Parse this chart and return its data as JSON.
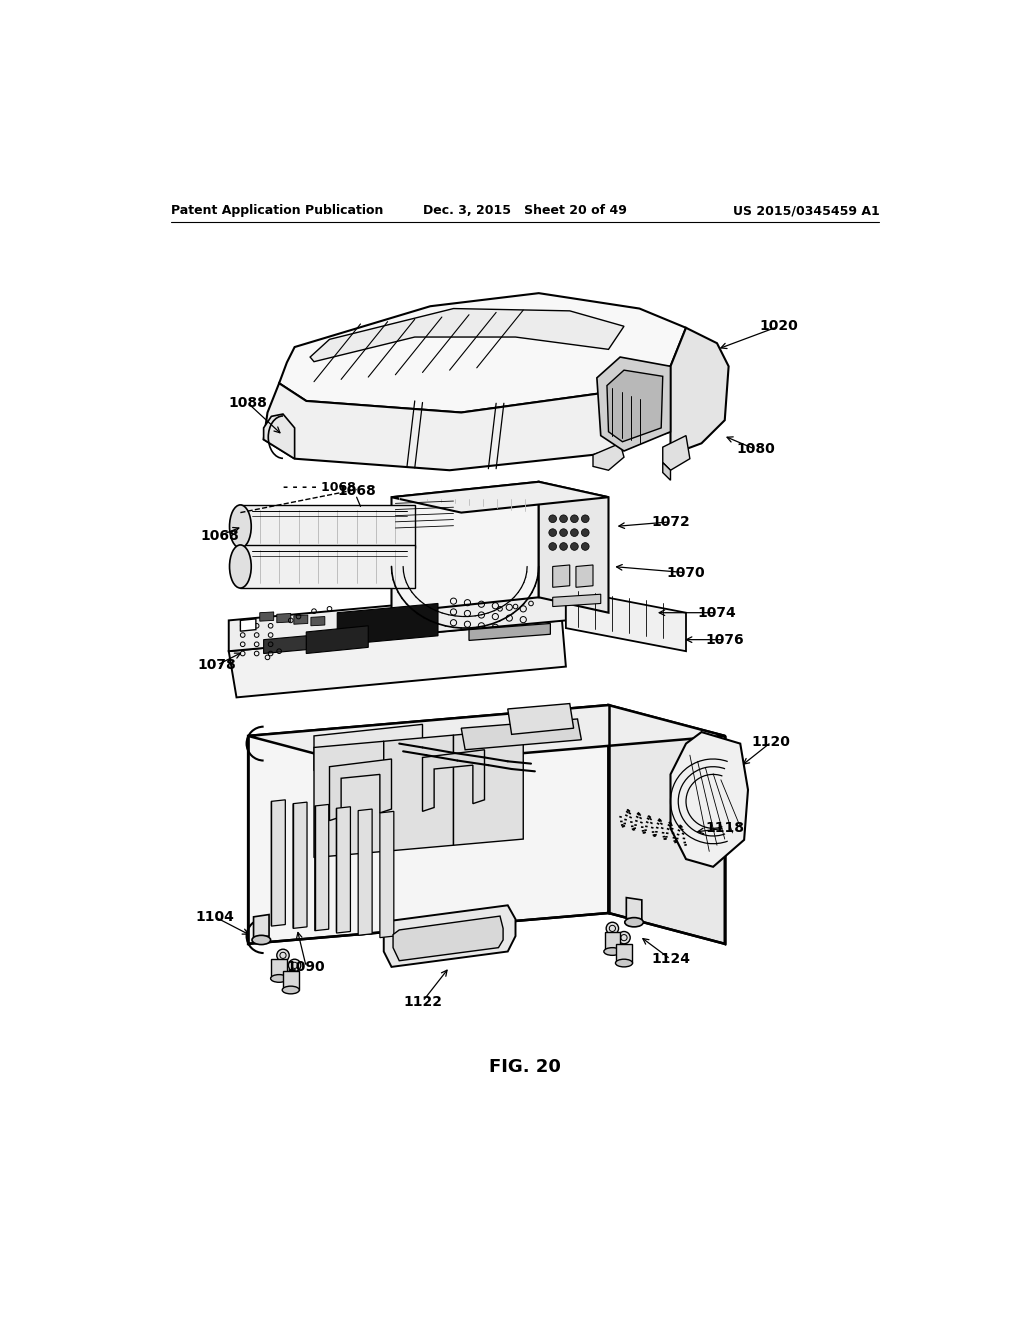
{
  "header_left": "Patent Application Publication",
  "header_center": "Dec. 3, 2015   Sheet 20 of 49",
  "header_right": "US 2015/0345459 A1",
  "figure_label": "FIG. 20",
  "bg_color": "#ffffff",
  "text_color": "#000000",
  "line_color": "#000000"
}
